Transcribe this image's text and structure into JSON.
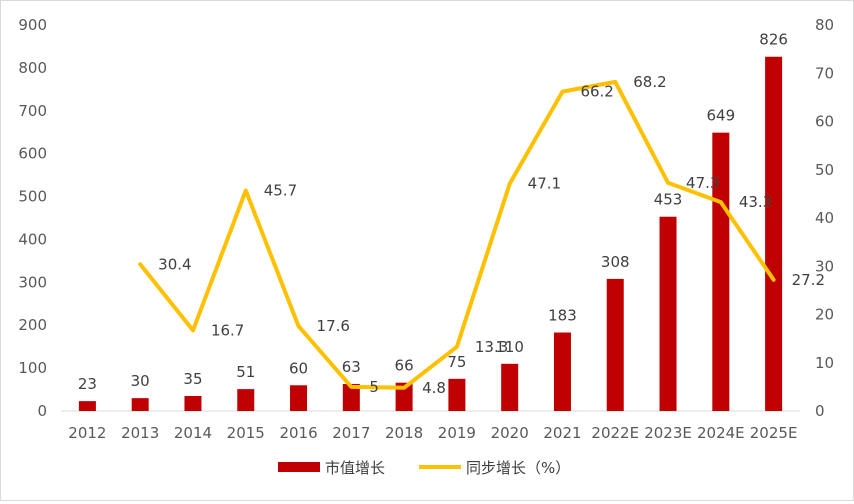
{
  "chart_data": {
    "type": "bar",
    "categories": [
      "2012",
      "2013",
      "2014",
      "2015",
      "2016",
      "2017",
      "2018",
      "2019",
      "2020",
      "2021",
      "2022E",
      "2023E",
      "2024E",
      "2025E"
    ],
    "series": [
      {
        "name": "市值增长",
        "type": "bar",
        "axis": "left",
        "color": "#c00000",
        "values": [
          23,
          30,
          35,
          51,
          60,
          63,
          66,
          75,
          110,
          183,
          308,
          453,
          649,
          826
        ],
        "labels": [
          "23",
          "30",
          "35",
          "51",
          "60",
          "63",
          "66",
          "75",
          "110",
          "183",
          "308",
          "453",
          "649",
          "826"
        ]
      },
      {
        "name": "同步增长（%）",
        "type": "line",
        "axis": "right",
        "color": "#ffc000",
        "values": [
          null,
          30.4,
          16.7,
          45.7,
          17.6,
          5,
          4.8,
          13.3,
          47.1,
          66.2,
          68.2,
          47.3,
          43.3,
          27.2
        ],
        "labels": [
          "",
          "30.4",
          "16.7",
          "45.7",
          "17.6",
          "5",
          "4.8",
          "13.3",
          "47.1",
          "66.2",
          "68.2",
          "47.3",
          "43.3",
          "27.2"
        ]
      }
    ],
    "y_left": {
      "ylim": [
        0,
        900
      ],
      "ticks": [
        "0",
        "100",
        "200",
        "300",
        "400",
        "500",
        "600",
        "700",
        "800",
        "900"
      ]
    },
    "y_right": {
      "ylim": [
        0,
        80
      ],
      "ticks": [
        "0",
        "10",
        "20",
        "30",
        "40",
        "50",
        "60",
        "70",
        "80"
      ]
    },
    "title": "",
    "xlabel": "",
    "ylabel": "",
    "grid": false,
    "legend": {
      "position": "bottom",
      "entries": [
        "市值增长",
        "同步增长（%）"
      ]
    }
  }
}
